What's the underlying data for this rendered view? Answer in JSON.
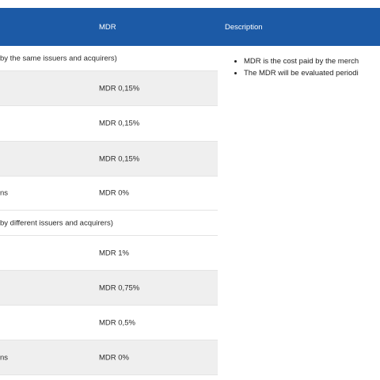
{
  "header": {
    "mdr_label": "MDR",
    "description_label": "Description"
  },
  "sections": [
    {
      "title": "by the same issuers and acquirers)",
      "rows": [
        {
          "label": "",
          "value": "MDR 0,15%"
        },
        {
          "label": "",
          "value": "MDR 0,15%"
        },
        {
          "label": "",
          "value": "MDR 0,15%"
        },
        {
          "label": "ns",
          "value": "MDR 0%"
        }
      ]
    },
    {
      "title": "by different issuers and acquirers)",
      "rows": [
        {
          "label": "",
          "value": "MDR 1%"
        },
        {
          "label": "",
          "value": "MDR 0,75%"
        },
        {
          "label": "",
          "value": "MDR 0,5%"
        },
        {
          "label": "ns",
          "value": "MDR 0%"
        }
      ]
    }
  ],
  "description": {
    "bullets": [
      "MDR is the cost paid by the merch",
      "The MDR will be evaluated periodi"
    ]
  }
}
